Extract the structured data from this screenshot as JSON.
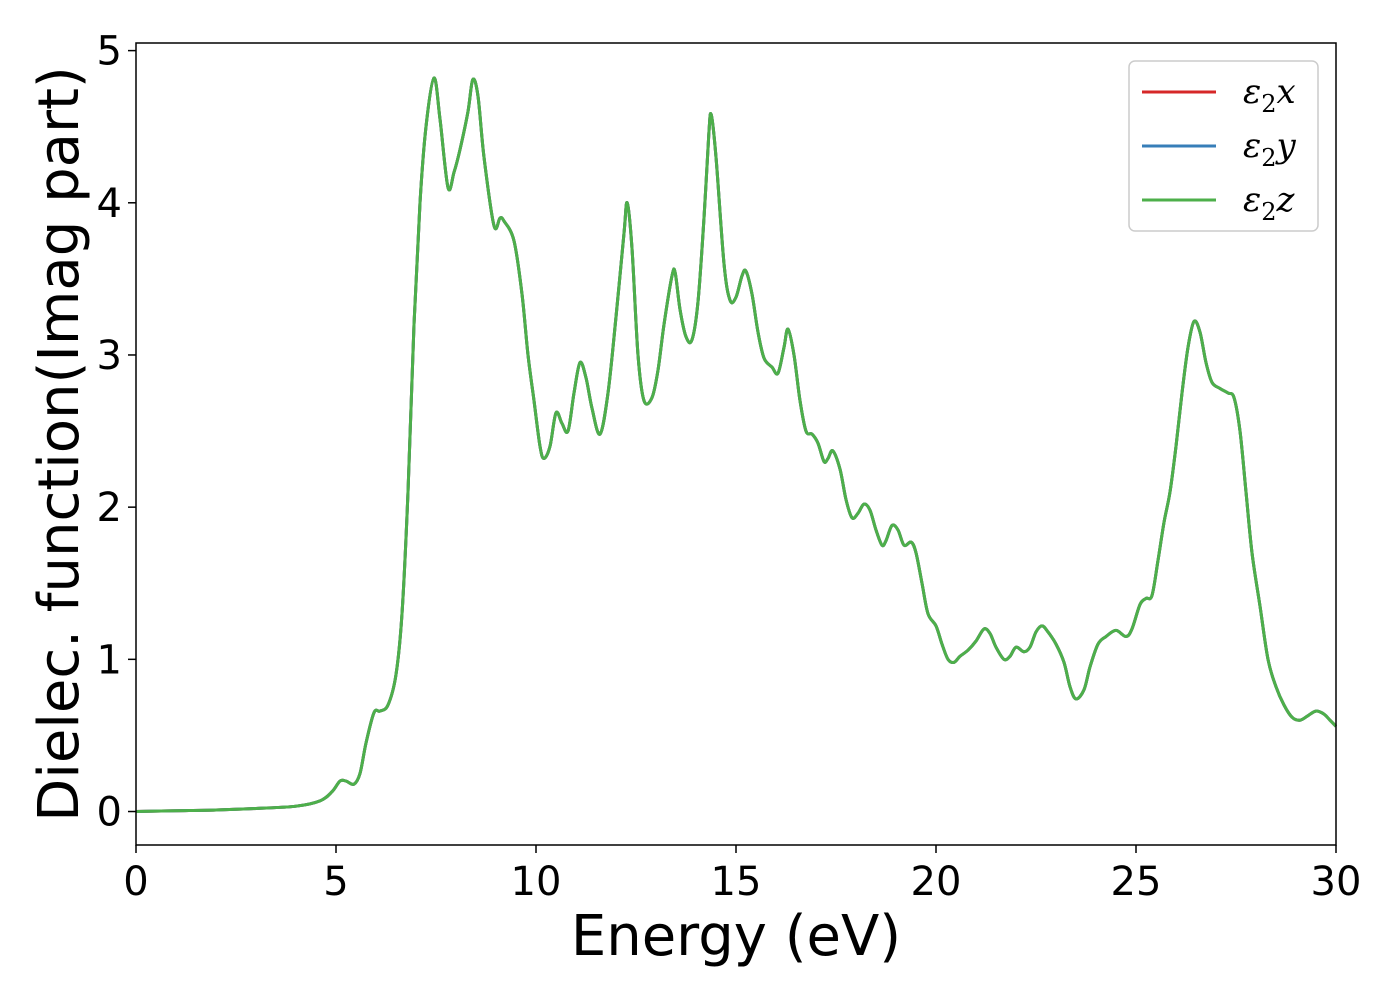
{
  "chart_data": {
    "type": "line",
    "title": "",
    "xlabel": "Energy (eV)",
    "ylabel": "Dielec. function(Imag part)",
    "xlim": [
      0,
      30
    ],
    "ylim": [
      -0.22,
      5.05
    ],
    "xticks": [
      0,
      5,
      10,
      15,
      20,
      25,
      30
    ],
    "yticks": [
      0,
      1,
      2,
      3,
      4,
      5
    ],
    "grid": false,
    "legend_position": "top-right",
    "series": [
      {
        "name": "ε₂x",
        "legend": {
          "base": "ε",
          "sub": "2",
          "axis": "x"
        },
        "color": "#d62728",
        "points": [
          [
            0,
            0.0
          ],
          [
            1,
            0.005
          ],
          [
            2,
            0.01
          ],
          [
            3,
            0.02
          ],
          [
            4,
            0.035
          ],
          [
            4.6,
            0.07
          ],
          [
            4.9,
            0.13
          ],
          [
            5.1,
            0.2
          ],
          [
            5.25,
            0.2
          ],
          [
            5.45,
            0.18
          ],
          [
            5.6,
            0.25
          ],
          [
            5.75,
            0.45
          ],
          [
            5.95,
            0.65
          ],
          [
            6.1,
            0.66
          ],
          [
            6.3,
            0.7
          ],
          [
            6.5,
            0.9
          ],
          [
            6.65,
            1.3
          ],
          [
            6.8,
            2.1
          ],
          [
            6.95,
            3.2
          ],
          [
            7.1,
            4.0
          ],
          [
            7.25,
            4.5
          ],
          [
            7.45,
            4.82
          ],
          [
            7.6,
            4.55
          ],
          [
            7.8,
            4.1
          ],
          [
            7.95,
            4.2
          ],
          [
            8.1,
            4.35
          ],
          [
            8.3,
            4.6
          ],
          [
            8.42,
            4.81
          ],
          [
            8.55,
            4.7
          ],
          [
            8.7,
            4.3
          ],
          [
            8.95,
            3.85
          ],
          [
            9.1,
            3.9
          ],
          [
            9.2,
            3.88
          ],
          [
            9.45,
            3.75
          ],
          [
            9.65,
            3.4
          ],
          [
            9.8,
            3.0
          ],
          [
            9.95,
            2.7
          ],
          [
            10.1,
            2.4
          ],
          [
            10.2,
            2.32
          ],
          [
            10.35,
            2.4
          ],
          [
            10.5,
            2.62
          ],
          [
            10.65,
            2.55
          ],
          [
            10.8,
            2.5
          ],
          [
            10.95,
            2.75
          ],
          [
            11.1,
            2.95
          ],
          [
            11.25,
            2.85
          ],
          [
            11.4,
            2.65
          ],
          [
            11.6,
            2.48
          ],
          [
            11.8,
            2.75
          ],
          [
            12.0,
            3.25
          ],
          [
            12.2,
            3.8
          ],
          [
            12.28,
            4.0
          ],
          [
            12.4,
            3.7
          ],
          [
            12.55,
            3.0
          ],
          [
            12.7,
            2.7
          ],
          [
            12.9,
            2.72
          ],
          [
            13.05,
            2.9
          ],
          [
            13.2,
            3.2
          ],
          [
            13.4,
            3.52
          ],
          [
            13.48,
            3.54
          ],
          [
            13.6,
            3.3
          ],
          [
            13.75,
            3.12
          ],
          [
            13.9,
            3.1
          ],
          [
            14.05,
            3.35
          ],
          [
            14.2,
            3.9
          ],
          [
            14.32,
            4.45
          ],
          [
            14.38,
            4.58
          ],
          [
            14.5,
            4.3
          ],
          [
            14.7,
            3.6
          ],
          [
            14.85,
            3.36
          ],
          [
            15.0,
            3.38
          ],
          [
            15.15,
            3.52
          ],
          [
            15.25,
            3.55
          ],
          [
            15.4,
            3.4
          ],
          [
            15.55,
            3.15
          ],
          [
            15.7,
            2.98
          ],
          [
            15.9,
            2.92
          ],
          [
            16.05,
            2.88
          ],
          [
            16.2,
            3.05
          ],
          [
            16.3,
            3.17
          ],
          [
            16.45,
            3.0
          ],
          [
            16.6,
            2.7
          ],
          [
            16.75,
            2.5
          ],
          [
            16.9,
            2.48
          ],
          [
            17.05,
            2.42
          ],
          [
            17.2,
            2.3
          ],
          [
            17.3,
            2.32
          ],
          [
            17.42,
            2.37
          ],
          [
            17.6,
            2.25
          ],
          [
            17.75,
            2.05
          ],
          [
            17.9,
            1.93
          ],
          [
            18.05,
            1.96
          ],
          [
            18.2,
            2.02
          ],
          [
            18.35,
            1.98
          ],
          [
            18.5,
            1.85
          ],
          [
            18.65,
            1.75
          ],
          [
            18.75,
            1.78
          ],
          [
            18.9,
            1.88
          ],
          [
            19.05,
            1.85
          ],
          [
            19.2,
            1.75
          ],
          [
            19.38,
            1.77
          ],
          [
            19.5,
            1.7
          ],
          [
            19.65,
            1.5
          ],
          [
            19.8,
            1.3
          ],
          [
            20.0,
            1.22
          ],
          [
            20.15,
            1.1
          ],
          [
            20.3,
            1.0
          ],
          [
            20.45,
            0.98
          ],
          [
            20.6,
            1.02
          ],
          [
            20.8,
            1.06
          ],
          [
            21.0,
            1.12
          ],
          [
            21.2,
            1.2
          ],
          [
            21.35,
            1.17
          ],
          [
            21.5,
            1.08
          ],
          [
            21.7,
            1.0
          ],
          [
            21.85,
            1.02
          ],
          [
            22.0,
            1.08
          ],
          [
            22.2,
            1.05
          ],
          [
            22.35,
            1.08
          ],
          [
            22.5,
            1.18
          ],
          [
            22.65,
            1.22
          ],
          [
            22.8,
            1.18
          ],
          [
            23.0,
            1.1
          ],
          [
            23.2,
            0.98
          ],
          [
            23.35,
            0.82
          ],
          [
            23.5,
            0.74
          ],
          [
            23.7,
            0.8
          ],
          [
            23.85,
            0.95
          ],
          [
            24.05,
            1.1
          ],
          [
            24.25,
            1.15
          ],
          [
            24.5,
            1.19
          ],
          [
            24.75,
            1.15
          ],
          [
            24.9,
            1.2
          ],
          [
            25.1,
            1.36
          ],
          [
            25.25,
            1.4
          ],
          [
            25.4,
            1.42
          ],
          [
            25.55,
            1.65
          ],
          [
            25.7,
            1.9
          ],
          [
            25.85,
            2.1
          ],
          [
            26.0,
            2.4
          ],
          [
            26.15,
            2.75
          ],
          [
            26.3,
            3.05
          ],
          [
            26.45,
            3.22
          ],
          [
            26.6,
            3.15
          ],
          [
            26.75,
            2.95
          ],
          [
            26.9,
            2.82
          ],
          [
            27.1,
            2.78
          ],
          [
            27.3,
            2.75
          ],
          [
            27.45,
            2.72
          ],
          [
            27.6,
            2.5
          ],
          [
            27.75,
            2.1
          ],
          [
            27.9,
            1.7
          ],
          [
            28.1,
            1.35
          ],
          [
            28.3,
            1.0
          ],
          [
            28.5,
            0.82
          ],
          [
            28.7,
            0.7
          ],
          [
            28.9,
            0.62
          ],
          [
            29.1,
            0.6
          ],
          [
            29.3,
            0.63
          ],
          [
            29.5,
            0.66
          ],
          [
            29.7,
            0.64
          ],
          [
            29.85,
            0.6
          ],
          [
            30.0,
            0.56
          ]
        ]
      },
      {
        "name": "ε₂y",
        "legend": {
          "base": "ε",
          "sub": "2",
          "axis": "y"
        },
        "color": "#377eb8",
        "same_as": 0
      },
      {
        "name": "ε₂z",
        "legend": {
          "base": "ε",
          "sub": "2",
          "axis": "z"
        },
        "color": "#4daf4a",
        "same_as": 0
      }
    ]
  }
}
